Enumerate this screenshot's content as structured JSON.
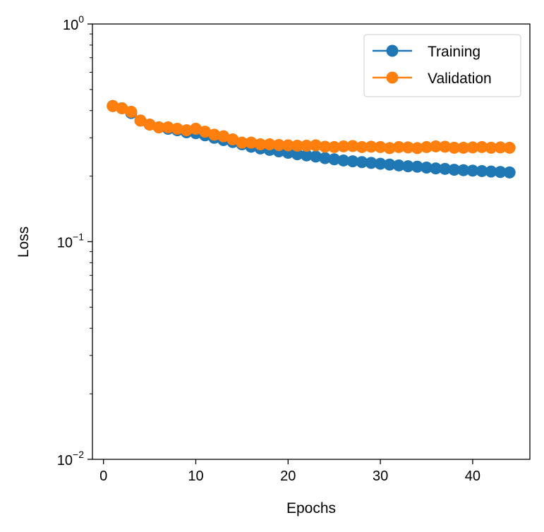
{
  "chart_data": {
    "type": "line",
    "xlabel": "Epochs",
    "ylabel": "Loss",
    "xlim": [
      -1.2,
      46.2
    ],
    "ylim": [
      0.01,
      1
    ],
    "y_scale": "log",
    "grid": false,
    "legend_position": "top-right",
    "x_ticks": [
      0,
      10,
      20,
      30,
      40
    ],
    "x_tick_labels": [
      "0",
      "10",
      "20",
      "30",
      "40"
    ],
    "y_ticks": [
      0.01,
      0.1,
      1
    ],
    "y_tick_labels": [
      {
        "base": "10",
        "exp": "−2"
      },
      {
        "base": "10",
        "exp": "−1"
      },
      {
        "base": "10",
        "exp": "0"
      }
    ],
    "x": [
      1,
      2,
      3,
      4,
      5,
      6,
      7,
      8,
      9,
      10,
      11,
      12,
      13,
      14,
      15,
      16,
      17,
      18,
      19,
      20,
      21,
      22,
      23,
      24,
      25,
      26,
      27,
      28,
      29,
      30,
      31,
      32,
      33,
      34,
      35,
      36,
      37,
      38,
      39,
      40,
      41,
      42,
      43,
      44
    ],
    "series": [
      {
        "name": "Training",
        "color": "#1f77b4",
        "marker": "circle",
        "values": [
          0.42,
          0.41,
          0.39,
          0.36,
          0.345,
          0.335,
          0.33,
          0.325,
          0.318,
          0.315,
          0.308,
          0.3,
          0.293,
          0.287,
          0.28,
          0.273,
          0.268,
          0.264,
          0.26,
          0.256,
          0.252,
          0.249,
          0.246,
          0.242,
          0.239,
          0.236,
          0.234,
          0.232,
          0.23,
          0.228,
          0.226,
          0.224,
          0.222,
          0.221,
          0.219,
          0.217,
          0.216,
          0.214,
          0.213,
          0.212,
          0.211,
          0.21,
          0.209,
          0.208
        ]
      },
      {
        "name": "Validation",
        "color": "#ff7f0e",
        "marker": "circle",
        "values": [
          0.42,
          0.41,
          0.395,
          0.36,
          0.345,
          0.335,
          0.335,
          0.33,
          0.325,
          0.33,
          0.32,
          0.31,
          0.305,
          0.295,
          0.285,
          0.285,
          0.28,
          0.28,
          0.278,
          0.277,
          0.276,
          0.276,
          0.277,
          0.273,
          0.272,
          0.274,
          0.275,
          0.272,
          0.273,
          0.272,
          0.269,
          0.272,
          0.271,
          0.269,
          0.272,
          0.274,
          0.273,
          0.27,
          0.27,
          0.271,
          0.272,
          0.27,
          0.271,
          0.27
        ]
      }
    ]
  }
}
